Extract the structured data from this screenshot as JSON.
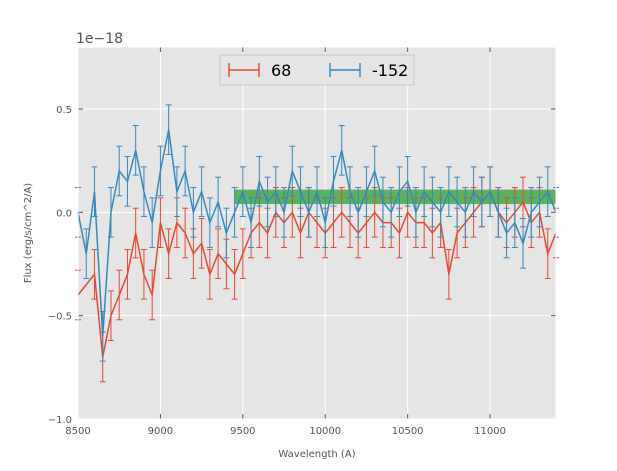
{
  "chart_data": {
    "type": "line",
    "title": "",
    "xlabel": "Wavelength (A)",
    "ylabel": "Flux (erg/s/cm^2/A)",
    "offset_text": "1e−18",
    "xlim": [
      8500,
      11400
    ],
    "ylim": [
      -1.0,
      0.8
    ],
    "xticks": [
      8500,
      9000,
      9500,
      10000,
      10500,
      11000
    ],
    "yticks": [
      -1.0,
      -0.5,
      0.0,
      0.5
    ],
    "ytick_labels": [
      "−1.0",
      "−0.5",
      "0.0",
      "0.5"
    ],
    "grid": true,
    "legend_position": "upper-center",
    "band": {
      "x_start": 9450,
      "x_end": 11400,
      "y_low": 0.04,
      "y_high": 0.11,
      "color": "#2ca02c"
    },
    "colors": {
      "68": "#e24a33",
      "-152": "#348abd",
      "background": "#e5e5e5"
    },
    "series": [
      {
        "name": "68",
        "color": "#e24a33",
        "errorbar": 0.12,
        "x": [
          8500,
          8600,
          8650,
          8700,
          8750,
          8800,
          8850,
          8900,
          8950,
          9000,
          9050,
          9100,
          9150,
          9200,
          9250,
          9300,
          9350,
          9400,
          9450,
          9500,
          9550,
          9600,
          9650,
          9700,
          9750,
          9800,
          9850,
          9900,
          9950,
          10000,
          10050,
          10100,
          10150,
          10200,
          10250,
          10300,
          10350,
          10400,
          10450,
          10500,
          10550,
          10600,
          10650,
          10700,
          10750,
          10800,
          10850,
          10900,
          10950,
          11000,
          11050,
          11100,
          11150,
          11200,
          11250,
          11300,
          11350,
          11400
        ],
        "values": [
          -0.4,
          -0.3,
          -0.7,
          -0.5,
          -0.4,
          -0.3,
          -0.1,
          -0.3,
          -0.4,
          -0.05,
          -0.2,
          -0.05,
          -0.1,
          -0.2,
          -0.15,
          -0.3,
          -0.2,
          -0.25,
          -0.3,
          -0.2,
          -0.1,
          -0.05,
          -0.1,
          0.0,
          -0.05,
          0.0,
          -0.1,
          0.0,
          -0.05,
          -0.1,
          -0.05,
          0.0,
          -0.05,
          -0.1,
          -0.05,
          0.0,
          -0.05,
          -0.05,
          -0.1,
          0.0,
          -0.05,
          -0.05,
          -0.1,
          -0.05,
          -0.3,
          -0.1,
          -0.05,
          0.0,
          0.05,
          0.1,
          0.0,
          -0.05,
          0.0,
          0.05,
          -0.05,
          0.0,
          -0.2,
          -0.1
        ]
      },
      {
        "name": "-152",
        "color": "#348abd",
        "errorbar": 0.12,
        "x": [
          8500,
          8550,
          8600,
          8650,
          8700,
          8750,
          8800,
          8850,
          8900,
          8950,
          9000,
          9050,
          9100,
          9150,
          9200,
          9250,
          9300,
          9350,
          9400,
          9450,
          9500,
          9550,
          9600,
          9650,
          9700,
          9750,
          9800,
          9850,
          9900,
          9950,
          10000,
          10050,
          10100,
          10150,
          10200,
          10250,
          10300,
          10350,
          10400,
          10450,
          10500,
          10550,
          10600,
          10650,
          10700,
          10750,
          10800,
          10850,
          10900,
          10950,
          11000,
          11050,
          11100,
          11150,
          11200,
          11250,
          11300,
          11350,
          11400
        ],
        "values": [
          0.0,
          -0.2,
          0.1,
          -0.6,
          0.0,
          0.2,
          0.15,
          0.3,
          0.1,
          -0.05,
          0.2,
          0.4,
          0.1,
          0.2,
          0.0,
          0.1,
          -0.05,
          0.05,
          -0.1,
          0.0,
          0.1,
          -0.05,
          0.15,
          0.05,
          0.1,
          0.0,
          0.2,
          0.1,
          0.0,
          0.1,
          -0.05,
          0.15,
          0.3,
          0.1,
          0.0,
          0.1,
          0.2,
          0.05,
          0.0,
          0.1,
          0.15,
          0.0,
          0.1,
          0.05,
          0.0,
          0.1,
          0.05,
          0.0,
          0.1,
          0.05,
          0.1,
          0.0,
          -0.1,
          -0.05,
          -0.15,
          0.0,
          0.05,
          0.1,
          0.0
        ]
      }
    ]
  }
}
